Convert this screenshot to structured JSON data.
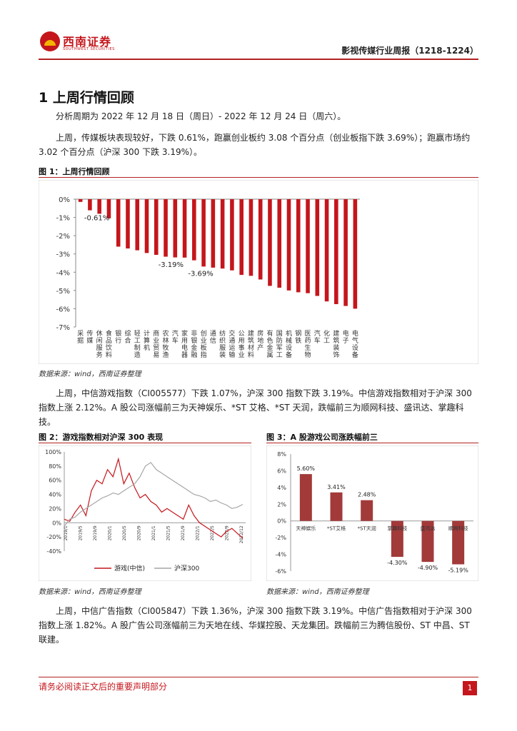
{
  "header": {
    "logo_name": "西南证券",
    "logo_subtitle": "SOUTHWEST SECURITIES",
    "report_title": "影视传媒行业周报（1218-1224）"
  },
  "section": {
    "title": "1 上周行情回顾"
  },
  "paragraphs": {
    "period": "分析周期为 2022 年 12 月 18 日（周日）- 2022 年 12 月 24 日（周六）。",
    "p1": "上周，传媒板块表现较好，下跌 0.61%，跑赢创业板约 3.08 个百分点（创业板指下跌 3.69%）；跑赢市场约 3.02 个百分点（沪深 300 下跌 3.19%）。",
    "p2": "上周，中信游戏指数（CI005577）下跌 1.07%，沪深 300 指数下跌 3.19%。中信游戏指数相对于沪深 300 指数上涨 2.12%。A 股公司涨幅前三为天神娱乐、*ST 艾格、*ST 天润，跌幅前三为顺网科技、盛讯达、掌趣科技。",
    "p3": "上周，中信广告指数（CI005847）下跌 1.36%，沪深 300 指数下跌 3.19%。中信广告指数相对于沪深 300 指数上涨 1.82%。A 股广告公司涨幅前三为天地在线、华媒控股、天龙集团。跌幅前三为腾信股份、ST 中昌、ST 联建。"
  },
  "figures": {
    "fig1": {
      "title": "图 1：上周行情回顾",
      "source": "数据来源：wind，西南证券整理"
    },
    "fig2": {
      "title": "图 2：游戏指数相对沪深 300 表现",
      "source": "数据来源：wind，西南证券整理"
    },
    "fig3": {
      "title": "图 3：A 股游戏公司涨跌幅前三",
      "source": "数据来源：wind，西南证券整理"
    }
  },
  "footer": {
    "disclaimer": "请务必阅读正文后的重要声明部分",
    "page": "1"
  },
  "chart_data": [
    {
      "type": "bar",
      "title": "图 1：上周行情回顾",
      "ylim": [
        -7,
        0
      ],
      "yticks": [
        "0%",
        "-1%",
        "-2%",
        "-3%",
        "-4%",
        "-5%",
        "-6%",
        "-7%"
      ],
      "categories": [
        "采掘",
        "传媒",
        "休闲服务",
        "食品饮料",
        "银行",
        "综合",
        "轻工制造",
        "计算机",
        "商业贸易",
        "农林牧渔",
        "汽车",
        "家用电器",
        "非银金融",
        "创业板指",
        "通信",
        "纺织服装",
        "交通运输",
        "公用事业",
        "建筑材料",
        "房地产",
        "有色金属",
        "国防军工",
        "机械设备",
        "钢铁",
        "医药生物",
        "汽车",
        "化工",
        "建筑装饰",
        "电子",
        "电气设备"
      ],
      "values": [
        -0.15,
        -0.61,
        -0.8,
        -1.05,
        -2.6,
        -2.7,
        -2.8,
        -2.95,
        -3.05,
        -3.15,
        -3.19,
        -3.2,
        -3.35,
        -3.69,
        -3.75,
        -3.8,
        -3.9,
        -4.15,
        -4.2,
        -4.4,
        -4.75,
        -4.85,
        -5.0,
        -5.1,
        -5.15,
        -5.3,
        -5.6,
        -5.75,
        -5.85,
        -6.0
      ],
      "data_labels": [
        {
          "category_index": 1,
          "text": "-0.61%"
        },
        {
          "category_index": 10,
          "text": "-3.19%"
        },
        {
          "category_index": 13,
          "text": "-3.69%"
        }
      ],
      "bar_color": "#c4161c"
    },
    {
      "type": "line",
      "title": "图 2：游戏指数相对沪深 300 表现",
      "ylim": [
        -40,
        100
      ],
      "yticks": [
        "100%",
        "80%",
        "60%",
        "40%",
        "20%",
        "0%",
        "-20%",
        "-40%"
      ],
      "x_tick_labels": [
        "2019/1",
        "2019/5",
        "2019/9",
        "2020/1",
        "2020/5",
        "2020/9",
        "2021/1",
        "2021/5",
        "2021/9",
        "2022/1",
        "2022/5",
        "2022/9",
        "2022/12"
      ],
      "series": [
        {
          "name": "游戏(中信)",
          "color": "#c4161c",
          "values": [
            5,
            2,
            15,
            25,
            10,
            45,
            60,
            55,
            75,
            65,
            90,
            55,
            70,
            50,
            35,
            40,
            30,
            25,
            15,
            20,
            15,
            10,
            5,
            25,
            10,
            0,
            -5,
            -10,
            -15,
            -20,
            -12,
            -8,
            -15,
            -22
          ]
        },
        {
          "name": "沪深300",
          "color": "#a6a6a6",
          "values": [
            -5,
            5,
            8,
            15,
            20,
            25,
            30,
            35,
            38,
            42,
            40,
            45,
            50,
            55,
            65,
            80,
            85,
            75,
            70,
            65,
            60,
            55,
            50,
            45,
            40,
            38,
            35,
            30,
            32,
            28,
            25,
            20,
            22,
            26
          ]
        }
      ]
    },
    {
      "type": "bar",
      "title": "图 3：A 股游戏公司涨跌幅前三",
      "ylim": [
        -6,
        8
      ],
      "yticks": [
        "8%",
        "6%",
        "4%",
        "2%",
        "0%",
        "-2%",
        "-4%",
        "-6%"
      ],
      "categories": [
        "天神娱乐",
        "*ST艾格",
        "*ST天润",
        "掌趣科技",
        "盛讯达",
        "顺网科技"
      ],
      "values": [
        5.6,
        3.41,
        2.48,
        -4.3,
        -4.9,
        -5.19
      ],
      "data_labels": [
        "5.60%",
        "3.41%",
        "2.48%",
        "-4.30%",
        "-4.90%",
        "-5.19%"
      ],
      "bar_color": "#a23a3a"
    }
  ]
}
